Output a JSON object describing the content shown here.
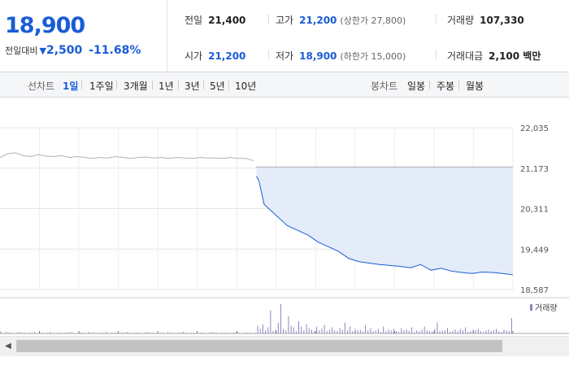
{
  "quote": {
    "price": "18,900",
    "change_label": "전일대비",
    "change_value": "2,500",
    "change_percent": "-11.68%",
    "direction_icon": "down-triangle-icon"
  },
  "summary": {
    "prev_close_label": "전일",
    "prev_close": "21,400",
    "high_label": "고가",
    "high": "21,200",
    "upper_limit": "(상한가 27,800)",
    "volume_label": "거래량",
    "volume": "107,330",
    "open_label": "시가",
    "open": "21,200",
    "low_label": "저가",
    "low": "18,900",
    "lower_limit": "(하한가 15,000)",
    "amount_label": "거래대금",
    "amount": "2,100 백만"
  },
  "tabs": {
    "line_label": "선차트",
    "line_periods": [
      "1일",
      "1주일",
      "3개월",
      "1년",
      "3년",
      "5년",
      "10년"
    ],
    "selected_period": "1일",
    "candle_label": "봉차트",
    "candle_periods": [
      "일봉",
      "주봉",
      "월봉"
    ]
  },
  "colors": {
    "blue": "#1a5cd6",
    "fill": "#e3ecf8",
    "grey_line": "#b3b3b3",
    "volume": "#9080c0"
  },
  "chart_data": [
    {
      "type": "line",
      "title": "",
      "ylim": [
        18587,
        22035
      ],
      "y_ticks": [
        "22,035",
        "21,173",
        "20,311",
        "19,449",
        "18,587"
      ],
      "grid": true,
      "series": [
        {
          "style": "grey",
          "x": [
            0,
            0.015,
            0.03,
            0.045,
            0.06,
            0.075,
            0.09,
            0.105,
            0.12,
            0.135,
            0.15,
            0.165,
            0.18,
            0.195,
            0.21,
            0.225,
            0.24,
            0.255,
            0.27,
            0.285,
            0.3,
            0.315,
            0.33,
            0.345,
            0.36,
            0.375,
            0.39,
            0.405,
            0.42,
            0.435,
            0.45,
            0.465,
            0.48,
            0.495
          ],
          "values": [
            21400,
            21480,
            21500,
            21440,
            21420,
            21460,
            21430,
            21420,
            21440,
            21400,
            21420,
            21400,
            21380,
            21400,
            21390,
            21420,
            21400,
            21380,
            21400,
            21410,
            21390,
            21400,
            21380,
            21400,
            21390,
            21380,
            21400,
            21390,
            21390,
            21380,
            21400,
            21380,
            21380,
            21330
          ]
        },
        {
          "style": "blue",
          "x": [
            0.5,
            0.505,
            0.51,
            0.515,
            0.52,
            0.53,
            0.54,
            0.55,
            0.56,
            0.57,
            0.58,
            0.6,
            0.62,
            0.64,
            0.66,
            0.68,
            0.7,
            0.72,
            0.74,
            0.76,
            0.78,
            0.8,
            0.82,
            0.84,
            0.86,
            0.88,
            0.9,
            0.92,
            0.94,
            0.96,
            0.98,
            1.0
          ],
          "values": [
            21000,
            20900,
            20650,
            20400,
            20350,
            20250,
            20150,
            20050,
            19950,
            19900,
            19850,
            19750,
            19600,
            19500,
            19400,
            19250,
            19180,
            19150,
            19120,
            19100,
            19080,
            19050,
            19120,
            19000,
            19040,
            18980,
            18950,
            18930,
            18960,
            18950,
            18930,
            18900
          ]
        }
      ],
      "reference_line": 21200
    },
    {
      "type": "bar",
      "legend": "거래량",
      "values": [
        1,
        0,
        2,
        1,
        1,
        0,
        1,
        2,
        1,
        1,
        0,
        1,
        1,
        2,
        0,
        1,
        1,
        0,
        1,
        2,
        1,
        0,
        1,
        1,
        0,
        1,
        1,
        2,
        1,
        0,
        1,
        1,
        1,
        0,
        2,
        1,
        1,
        0,
        1,
        1,
        1,
        2,
        0,
        1,
        1,
        1,
        0,
        1,
        1,
        2,
        1,
        0,
        1,
        1,
        1,
        0,
        1,
        2,
        1,
        1,
        0,
        1,
        1,
        1,
        0,
        2,
        1,
        1,
        0,
        1,
        1,
        2,
        1,
        0,
        1,
        1,
        1,
        0,
        1,
        1,
        0,
        1,
        2,
        1,
        1,
        0,
        1,
        1,
        1,
        0,
        1,
        1,
        2,
        1,
        0,
        1,
        1,
        1,
        0,
        1,
        10,
        6,
        12,
        4,
        8,
        30,
        3,
        5,
        14,
        38,
        6,
        4,
        22,
        10,
        8,
        3,
        16,
        9,
        4,
        12,
        7,
        5,
        3,
        9,
        4,
        6,
        11,
        3,
        5,
        8,
        4,
        3,
        7,
        5,
        14,
        4,
        9,
        3,
        6,
        4,
        5,
        3,
        11,
        4,
        7,
        3,
        4,
        6,
        2,
        9,
        3,
        5,
        4,
        6,
        3,
        2,
        7,
        4,
        5,
        3,
        8,
        2,
        4,
        3,
        5,
        9,
        4,
        3,
        2,
        6,
        14,
        3,
        4,
        4,
        7,
        2,
        3,
        5,
        3,
        6,
        4,
        8,
        2,
        3,
        5,
        4,
        6,
        3,
        2,
        4,
        5,
        3,
        4,
        6,
        3,
        2,
        5,
        4,
        3,
        20
      ]
    }
  ]
}
